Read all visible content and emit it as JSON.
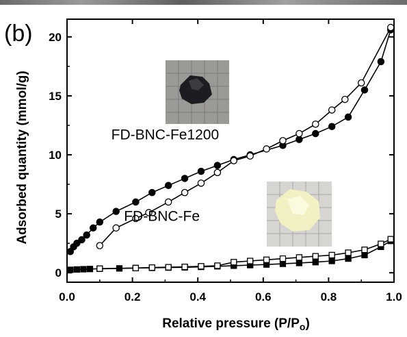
{
  "chart_data": {
    "type": "scatter",
    "panel_label": "(b)",
    "xlabel": "Relative pressure (P/P",
    "xlabel_sub": "o",
    "xlabel_close": ")",
    "ylabel": "Adsorbed quantity (mmol/g)",
    "xlim": [
      0,
      1.0
    ],
    "ylim": [
      -0.8,
      21.5
    ],
    "xticks": [
      0.0,
      0.2,
      0.4,
      0.6,
      0.8,
      1.0
    ],
    "xtick_labels": [
      "0.0",
      "0.2",
      "0.4",
      "0.6",
      "0.8",
      "1.0"
    ],
    "yticks": [
      0,
      5,
      10,
      15,
      20
    ],
    "ytick_labels": [
      "0",
      "5",
      "10",
      "15",
      "20"
    ],
    "grid": false,
    "annotations": [
      {
        "text": "FD-BNC-Fe1200",
        "x": 0.3,
        "y": 11.3
      },
      {
        "text": "FD-BNC-Fe",
        "x": 0.29,
        "y": 4.4
      }
    ],
    "series": [
      {
        "marker": "circle-filled",
        "x": [
          0.01,
          0.02,
          0.03,
          0.045,
          0.06,
          0.08,
          0.1,
          0.15,
          0.21,
          0.26,
          0.31,
          0.36,
          0.41,
          0.46,
          0.51,
          0.56,
          0.66,
          0.71,
          0.76,
          0.81,
          0.86,
          0.91,
          0.96,
          0.99
        ],
        "y": [
          1.8,
          2.2,
          2.5,
          2.8,
          3.2,
          3.8,
          4.3,
          5.2,
          6.0,
          6.8,
          7.4,
          8.0,
          8.6,
          9.1,
          9.6,
          10.0,
          10.8,
          11.3,
          11.8,
          12.4,
          13.2,
          15.5,
          17.9,
          20.6
        ]
      },
      {
        "marker": "circle-open",
        "x": [
          0.1,
          0.15,
          0.21,
          0.25,
          0.31,
          0.36,
          0.41,
          0.46,
          0.51,
          0.56,
          0.61,
          0.66,
          0.71,
          0.76,
          0.81,
          0.85,
          0.9,
          0.99
        ],
        "y": [
          2.3,
          3.8,
          4.6,
          5.1,
          6.0,
          6.8,
          7.6,
          8.5,
          9.5,
          9.9,
          10.5,
          11.2,
          11.8,
          12.6,
          13.8,
          14.7,
          16.1,
          20.8
        ]
      },
      {
        "marker": "square-filled",
        "x": [
          0.01,
          0.03,
          0.05,
          0.07,
          0.1,
          0.16,
          0.21,
          0.26,
          0.31,
          0.36,
          0.41,
          0.46,
          0.51,
          0.56,
          0.61,
          0.66,
          0.71,
          0.76,
          0.81,
          0.86,
          0.91,
          0.96,
          0.99
        ],
        "y": [
          0.25,
          0.28,
          0.3,
          0.32,
          0.34,
          0.37,
          0.4,
          0.42,
          0.44,
          0.46,
          0.5,
          0.55,
          0.6,
          0.65,
          0.7,
          0.76,
          0.83,
          0.9,
          1.0,
          1.2,
          1.5,
          2.2,
          2.7
        ]
      },
      {
        "marker": "square-open",
        "x": [
          0.1,
          0.21,
          0.26,
          0.31,
          0.36,
          0.41,
          0.46,
          0.51,
          0.56,
          0.61,
          0.66,
          0.71,
          0.76,
          0.81,
          0.86,
          0.91,
          0.96,
          0.99
        ],
        "y": [
          0.35,
          0.4,
          0.44,
          0.47,
          0.5,
          0.55,
          0.6,
          0.9,
          1.0,
          1.1,
          1.2,
          1.3,
          1.4,
          1.5,
          1.7,
          1.95,
          2.45,
          2.85
        ]
      }
    ],
    "insets": [
      {
        "description": "dark-sample-photo",
        "colors": {
          "background": "#9c9a97",
          "grid": "#7d7b78",
          "sample": "#1c1d20"
        }
      },
      {
        "description": "light-sample-photo",
        "colors": {
          "background": "#d6d5d2",
          "grid": "#a9a8a5",
          "sample": "#f3f0c3"
        }
      }
    ]
  }
}
